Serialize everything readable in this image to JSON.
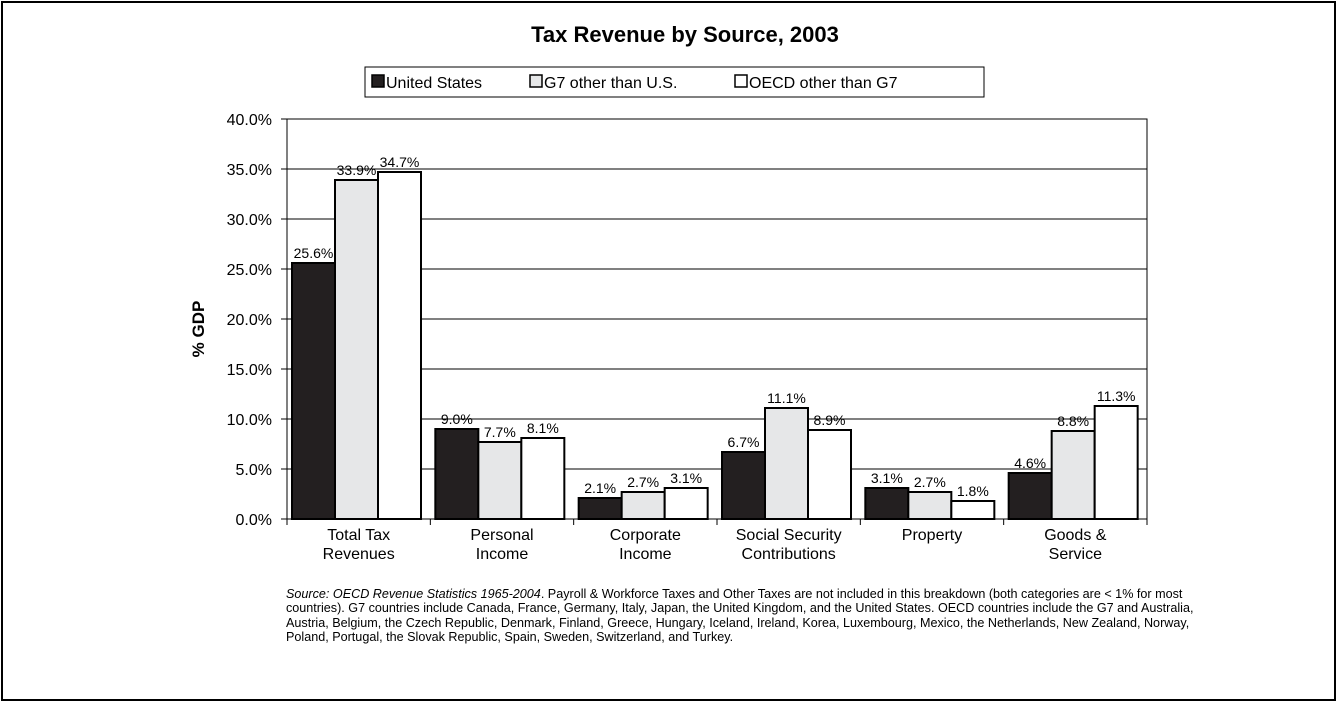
{
  "chart_data": {
    "type": "bar",
    "title": "Tax Revenue by Source, 2003",
    "ylabel": "% GDP",
    "xlabel": "",
    "ylim": [
      0,
      40
    ],
    "yticks": [
      "0.0%",
      "5.0%",
      "10.0%",
      "15.0%",
      "20.0%",
      "25.0%",
      "30.0%",
      "35.0%",
      "40.0%"
    ],
    "grid": true,
    "legend_position": "top",
    "categories": [
      [
        "Total Tax",
        "Revenues"
      ],
      [
        "Personal",
        "Income"
      ],
      [
        "Corporate",
        "Income"
      ],
      [
        "Social Security",
        "Contributions"
      ],
      [
        "Property"
      ],
      [
        "Goods &",
        "Service"
      ]
    ],
    "series": [
      {
        "name": "United States",
        "color": "#231f20",
        "values": [
          25.6,
          9.0,
          2.1,
          6.7,
          3.1,
          4.6
        ],
        "labels": [
          "25.6%",
          "9.0%",
          "2.1%",
          "6.7%",
          "3.1%",
          "4.6%"
        ]
      },
      {
        "name": "G7 other than U.S.",
        "color": "#e6e7e8",
        "values": [
          33.9,
          7.7,
          2.7,
          11.1,
          2.7,
          8.8
        ],
        "labels": [
          "33.9%",
          "7.7%",
          "2.7%",
          "11.1%",
          "2.7%",
          "8.8%"
        ]
      },
      {
        "name": "OECD other than G7",
        "color": "#ffffff",
        "values": [
          34.7,
          8.1,
          3.1,
          8.9,
          1.8,
          11.3
        ],
        "labels": [
          "34.7%",
          "8.1%",
          "3.1%",
          "8.9%",
          "1.8%",
          "11.3%"
        ]
      }
    ]
  },
  "source_note": {
    "source_italic": "Source: OECD Revenue Statistics 1965-2004",
    "body": ". Payroll & Workforce Taxes and Other Taxes are not included in this breakdown (both categories are < 1% for most countries). G7 countries include Canada, France, Germany, Italy, Japan, the United Kingdom, and the United States. OECD countries include the G7 and Australia, Austria, Belgium, the Czech Republic, Denmark, Finland, Greece, Hungary, Iceland, Ireland, Korea, Luxembourg, Mexico, the Netherlands, New Zealand, Norway, Poland, Portugal, the Slovak Republic, Spain, Sweden, Switzerland, and Turkey."
  }
}
